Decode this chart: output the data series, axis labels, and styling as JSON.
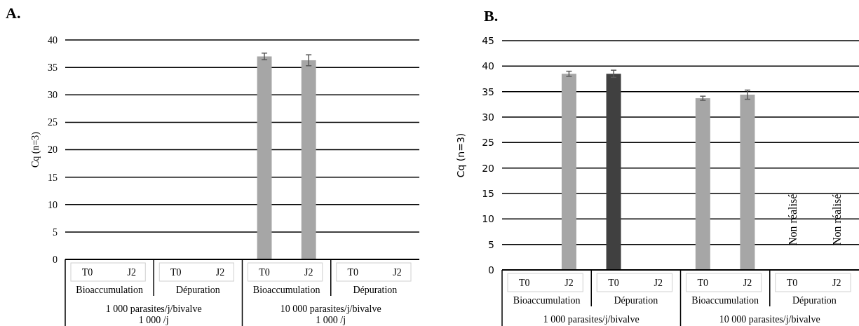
{
  "chart_data": [
    {
      "type": "bar",
      "title": "A.",
      "ylabel": "Cq (n=3)",
      "categories": [
        "T0",
        "J2",
        "T0",
        "J2",
        "T0",
        "J2",
        "T0",
        "J2"
      ],
      "values": [
        null,
        null,
        null,
        null,
        37.0,
        36.3,
        null,
        null
      ],
      "color": "#a6a6a6",
      "errors": [
        null,
        null,
        null,
        null,
        0.6,
        1.0,
        null,
        null
      ],
      "ylim": [
        0,
        40
      ],
      "yticks": [
        0,
        5,
        10,
        15,
        20,
        25,
        30,
        35,
        40
      ],
      "grid": "y",
      "annotations": [
        "Bioaccumulation",
        "Dépuration",
        "Bioaccumulation",
        "Dépuration",
        "1 000 parasites/j/bivalve\n1 000 /j",
        "10 000 parasites/j/bivalve\n1 000 /j"
      ]
    },
    {
      "type": "bar",
      "title": "B.",
      "ylabel": "Cq (n=3)",
      "categories": [
        "T0",
        "J2",
        "T0",
        "J2",
        "T0",
        "J2",
        "T0",
        "J2"
      ],
      "values": [
        null,
        38.5,
        38.5,
        null,
        33.7,
        34.4,
        null,
        null
      ],
      "colors": [
        null,
        "#a6a6a6",
        "#404040",
        null,
        "#a6a6a6",
        "#a6a6a6",
        null,
        null
      ],
      "errors": [
        null,
        0.5,
        0.7,
        null,
        0.4,
        0.9,
        null,
        null
      ],
      "value_labels": [
        null,
        null,
        null,
        null,
        null,
        null,
        "Non réalisé",
        "Non réalisé"
      ],
      "ylim": [
        0,
        45
      ],
      "yticks": [
        0,
        5,
        10,
        15,
        20,
        25,
        30,
        35,
        40,
        45
      ],
      "grid": "y",
      "annotations": [
        "Bioaccumulation",
        "Dépuration",
        "Bioaccumulation",
        "Dépuration",
        "1 000 parasites/j/bivalve",
        "10 000 parasites/j/bivalve"
      ]
    }
  ]
}
